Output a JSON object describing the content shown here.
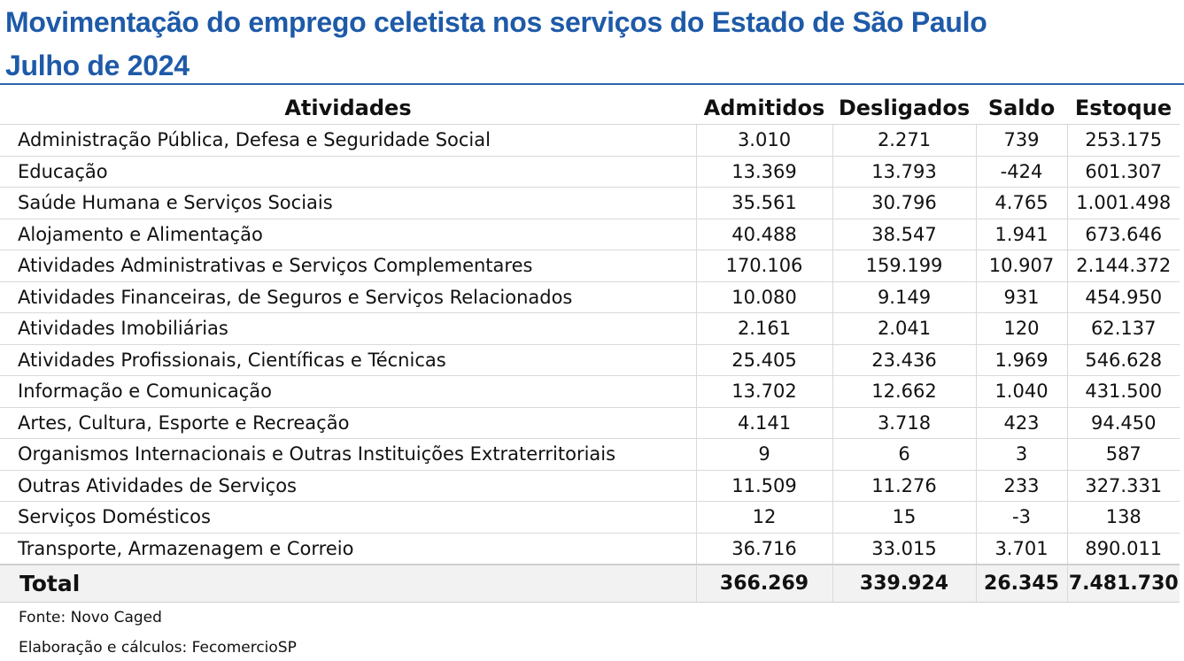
{
  "title_line1": "Movimentação do emprego celetista nos serviços do Estado de São Paulo",
  "title_line2": "Julho de 2024",
  "colors": {
    "title": "#1e5aa8",
    "rule": "#2f66ad",
    "total_bg": "#f2f2f2"
  },
  "table": {
    "headers": [
      "Atividades",
      "Admitidos",
      "Desligados",
      "Saldo",
      "Estoque"
    ],
    "rows": [
      {
        "atividade": "Administração Pública, Defesa e Seguridade Social",
        "admitidos": "3.010",
        "desligados": "2.271",
        "saldo": "739",
        "estoque": "253.175"
      },
      {
        "atividade": "Educação",
        "admitidos": "13.369",
        "desligados": "13.793",
        "saldo": "-424",
        "estoque": "601.307"
      },
      {
        "atividade": "Saúde Humana e Serviços Sociais",
        "admitidos": "35.561",
        "desligados": "30.796",
        "saldo": "4.765",
        "estoque": "1.001.498"
      },
      {
        "atividade": "Alojamento e Alimentação",
        "admitidos": "40.488",
        "desligados": "38.547",
        "saldo": "1.941",
        "estoque": "673.646"
      },
      {
        "atividade": "Atividades Administrativas e Serviços Complementares",
        "admitidos": "170.106",
        "desligados": "159.199",
        "saldo": "10.907",
        "estoque": "2.144.372"
      },
      {
        "atividade": "Atividades Financeiras, de Seguros e Serviços Relacionados",
        "admitidos": "10.080",
        "desligados": "9.149",
        "saldo": "931",
        "estoque": "454.950"
      },
      {
        "atividade": "Atividades Imobiliárias",
        "admitidos": "2.161",
        "desligados": "2.041",
        "saldo": "120",
        "estoque": "62.137"
      },
      {
        "atividade": "Atividades Profissionais, Científicas e Técnicas",
        "admitidos": "25.405",
        "desligados": "23.436",
        "saldo": "1.969",
        "estoque": "546.628"
      },
      {
        "atividade": "Informação e Comunicação",
        "admitidos": "13.702",
        "desligados": "12.662",
        "saldo": "1.040",
        "estoque": "431.500"
      },
      {
        "atividade": "Artes, Cultura, Esporte e Recreação",
        "admitidos": "4.141",
        "desligados": "3.718",
        "saldo": "423",
        "estoque": "94.450"
      },
      {
        "atividade": "Organismos Internacionais e Outras Instituições Extraterritoriais",
        "admitidos": "9",
        "desligados": "6",
        "saldo": "3",
        "estoque": "587"
      },
      {
        "atividade": "Outras Atividades de Serviços",
        "admitidos": "11.509",
        "desligados": "11.276",
        "saldo": "233",
        "estoque": "327.331"
      },
      {
        "atividade": "Serviços Domésticos",
        "admitidos": "12",
        "desligados": "15",
        "saldo": "-3",
        "estoque": "138"
      },
      {
        "atividade": "Transporte, Armazenagem e Correio",
        "admitidos": "36.716",
        "desligados": "33.015",
        "saldo": "3.701",
        "estoque": "890.011"
      }
    ],
    "total": {
      "atividade": "Total",
      "admitidos": "366.269",
      "desligados": "339.924",
      "saldo": "26.345",
      "estoque": "7.481.730"
    }
  },
  "source": "Fonte: Novo Caged",
  "credits": "Elaboração e cálculos: FecomercioSP"
}
